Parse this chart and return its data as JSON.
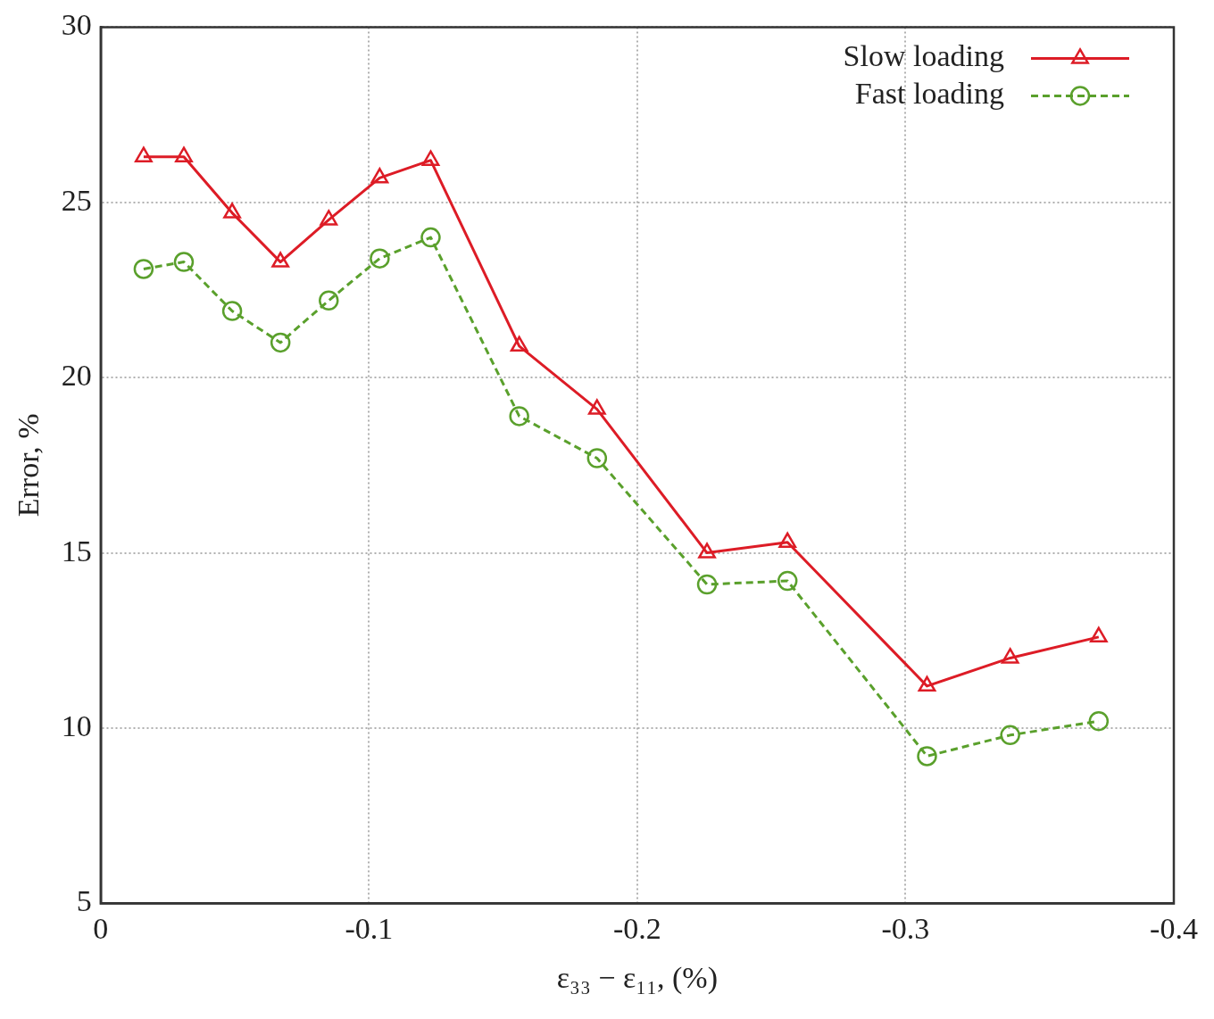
{
  "chart_data": {
    "type": "line",
    "xlabel": "ε₃₃ − ε₁₁, (%)",
    "ylabel": "Error, %",
    "x": [
      -0.016,
      -0.031,
      -0.049,
      -0.067,
      -0.085,
      -0.104,
      -0.123,
      -0.156,
      -0.185,
      -0.226,
      -0.256,
      -0.308,
      -0.339,
      -0.372
    ],
    "series": [
      {
        "name": "Slow loading",
        "color": "#dd1c26",
        "marker": "triangle",
        "line_style": "solid",
        "values": [
          26.3,
          26.3,
          24.7,
          23.3,
          24.5,
          25.7,
          26.2,
          20.9,
          19.1,
          15.0,
          15.3,
          11.2,
          12.0,
          12.6
        ]
      },
      {
        "name": "Fast loading",
        "color": "#5aa02c",
        "marker": "circle",
        "line_style": "dashed",
        "values": [
          23.1,
          23.3,
          21.9,
          21.0,
          22.2,
          23.4,
          24.0,
          18.9,
          17.7,
          14.1,
          14.2,
          9.2,
          9.8,
          10.2
        ]
      }
    ],
    "xlim": [
      0,
      -0.4
    ],
    "xticks": [
      0,
      -0.1,
      -0.2,
      -0.3,
      -0.4
    ],
    "ylim": [
      5,
      30
    ],
    "yticks": [
      5,
      10,
      15,
      20,
      25,
      30
    ],
    "grid": true,
    "legend": "top right"
  }
}
